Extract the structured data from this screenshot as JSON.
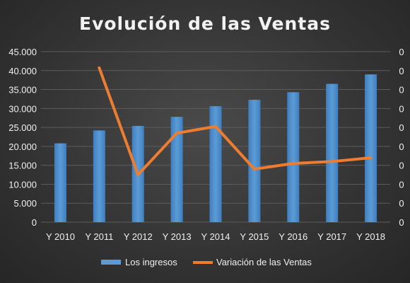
{
  "chart_data": {
    "type": "bar",
    "title": "Evolución de las Ventas",
    "categories": [
      "Y 2010",
      "Y 2011",
      "Y 2012",
      "Y 2013",
      "Y 2014",
      "Y 2015",
      "Y 2016",
      "Y 2017",
      "Y 2018"
    ],
    "series": [
      {
        "name": "Los ingresos",
        "type": "bar",
        "axis": "left",
        "color": "#5b9bd5",
        "values": [
          20800,
          24200,
          25400,
          27800,
          30600,
          32300,
          34300,
          36500,
          39000
        ]
      },
      {
        "name": "Variación de las Ventas",
        "type": "line",
        "axis": "right",
        "color": "#ed7d31",
        "values": [
          null,
          0.163,
          0.05,
          0.094,
          0.101,
          0.056,
          0.062,
          0.064,
          0.068
        ]
      }
    ],
    "y_left": {
      "ylim": [
        0,
        45000
      ],
      "tick_labels": [
        "0",
        "5.000",
        "10.000",
        "15.000",
        "20.000",
        "25.000",
        "30.000",
        "35.000",
        "40.000",
        "45.000"
      ]
    },
    "y_right": {
      "ylim": [
        0,
        0.18
      ],
      "tick_labels": [
        "0",
        "0",
        "0",
        "0",
        "0",
        "0",
        "0",
        "0",
        "0",
        "0"
      ]
    },
    "grid": true,
    "legend_position": "bottom"
  }
}
